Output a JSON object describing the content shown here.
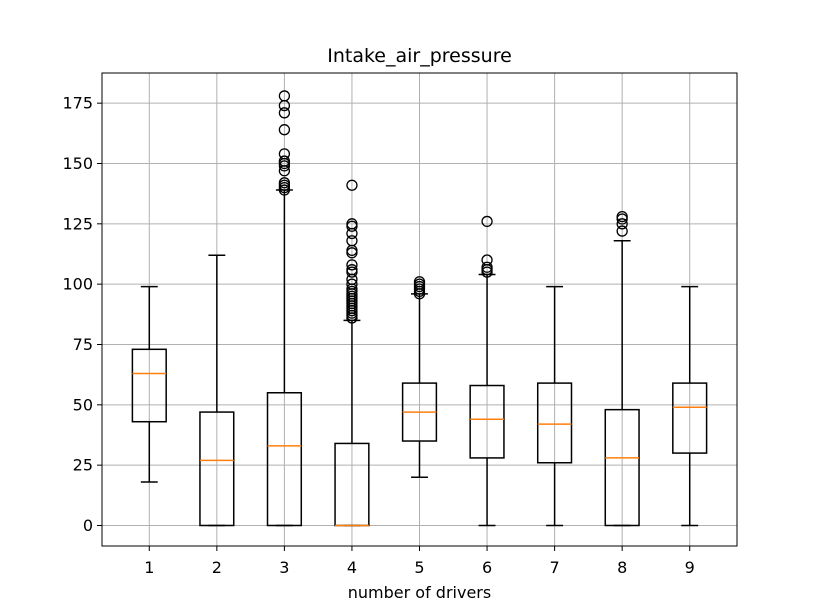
{
  "chart_data": {
    "type": "box",
    "title": "Intake_air_pressure",
    "xlabel": "number of drivers",
    "ylabel": "",
    "categories": [
      "1",
      "2",
      "3",
      "4",
      "5",
      "6",
      "7",
      "8",
      "9"
    ],
    "ylim": [
      -8.5,
      187.5
    ],
    "yticks": [
      0,
      25,
      50,
      75,
      100,
      125,
      150,
      175
    ],
    "ytick_labels": [
      "0",
      "25",
      "50",
      "75",
      "100",
      "125",
      "150",
      "175"
    ],
    "grid": true,
    "colors": {
      "box": "#000000",
      "median": "#ff7f0e",
      "grid": "#b0b0b0"
    },
    "boxes": [
      {
        "category": "1",
        "whisker_low": 18,
        "q1": 43,
        "median": 63,
        "q3": 73,
        "whisker_high": 99,
        "outliers": []
      },
      {
        "category": "2",
        "whisker_low": 0,
        "q1": 0,
        "median": 27,
        "q3": 47,
        "whisker_high": 112,
        "outliers": []
      },
      {
        "category": "3",
        "whisker_low": 0,
        "q1": 0,
        "median": 33,
        "q3": 55,
        "whisker_high": 139,
        "outliers": [
          139,
          140,
          141,
          142,
          147,
          149,
          150,
          151,
          154,
          164,
          171,
          174,
          178
        ]
      },
      {
        "category": "4",
        "whisker_low": 0,
        "q1": 0,
        "median": 0,
        "q3": 34,
        "whisker_high": 85,
        "outliers": [
          86,
          87,
          88,
          89,
          90,
          91,
          92,
          93,
          94,
          95,
          96,
          97,
          98,
          100,
          102,
          105,
          106,
          108,
          113,
          114,
          118,
          121,
          124,
          125,
          141
        ]
      },
      {
        "category": "5",
        "whisker_low": 20,
        "q1": 35,
        "median": 47,
        "q3": 59,
        "whisker_high": 96,
        "outliers": [
          96,
          97,
          98,
          99,
          100,
          101
        ]
      },
      {
        "category": "6",
        "whisker_low": 0,
        "q1": 28,
        "median": 44,
        "q3": 58,
        "whisker_high": 104,
        "outliers": [
          105,
          106,
          107,
          110,
          126
        ]
      },
      {
        "category": "7",
        "whisker_low": 0,
        "q1": 26,
        "median": 42,
        "q3": 59,
        "whisker_high": 99,
        "outliers": []
      },
      {
        "category": "8",
        "whisker_low": 0,
        "q1": 0,
        "median": 28,
        "q3": 48,
        "whisker_high": 118,
        "outliers": [
          122,
          125,
          127,
          128
        ]
      },
      {
        "category": "9",
        "whisker_low": 0,
        "q1": 30,
        "median": 49,
        "q3": 59,
        "whisker_high": 99,
        "outliers": []
      }
    ]
  }
}
